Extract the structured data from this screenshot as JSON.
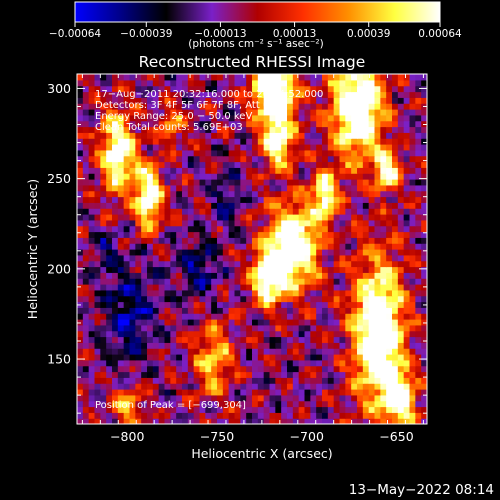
{
  "chart_data": {
    "type": "heatmap",
    "title": "Reconstructed RHESSI Image",
    "xlabel": "Heliocentric X (arcsec)",
    "ylabel": "Heliocentric Y (arcsec)",
    "xlim": [
      -828,
      -633
    ],
    "ylim": [
      114,
      308
    ],
    "x_ticks": [
      -800,
      -750,
      -700,
      -650
    ],
    "x_tick_labels": [
      "−800",
      "−750",
      "−700",
      "−650"
    ],
    "y_ticks": [
      150,
      200,
      250,
      300
    ],
    "y_tick_labels": [
      "150",
      "200",
      "250",
      "300"
    ],
    "colorbar": {
      "range": [
        -0.00064,
        0.00064
      ],
      "ticks": [
        -0.00064,
        -0.00039,
        -0.00013,
        0.00013,
        0.00039,
        0.00064
      ],
      "tick_labels": [
        "−0.00064",
        "−0.00039",
        "−0.00013",
        "0.00013",
        "0.00039",
        "0.00064"
      ],
      "unit_label": "(photons cm⁻² s⁻¹ asec⁻²)"
    },
    "annotations": [
      "17−Aug−2011 20:32:16.000 to 20:34:52.000",
      "Detectors: 3F 4F 5F 6F 7F 8F, Att 0",
      "Energy Range: 25.0 − 50.0 keV",
      "Clean     Total counts: 5.69E+03"
    ],
    "peak_text": "Position of Peak = [−699,304]",
    "grid": false,
    "colormap_stops": [
      "#0000ff",
      "#000088",
      "#000000",
      "#7a20c8",
      "#b00000",
      "#ff3000",
      "#ff9000",
      "#ffff40",
      "#ffffff"
    ],
    "hotspots": [
      {
        "x": -805,
        "y": 265,
        "sx": 7,
        "sy": 16,
        "amp": 1.2
      },
      {
        "x": -788,
        "y": 240,
        "sx": 5,
        "sy": 12,
        "amp": 1.3
      },
      {
        "x": -718,
        "y": 298,
        "sx": 8,
        "sy": 12,
        "amp": 1.6
      },
      {
        "x": -716,
        "y": 270,
        "sx": 6,
        "sy": 10,
        "amp": 1.1
      },
      {
        "x": -708,
        "y": 212,
        "sx": 10,
        "sy": 16,
        "amp": 1.5
      },
      {
        "x": -722,
        "y": 195,
        "sx": 6,
        "sy": 10,
        "amp": 1.2
      },
      {
        "x": -690,
        "y": 240,
        "sx": 5,
        "sy": 10,
        "amp": 1.1
      },
      {
        "x": -672,
        "y": 290,
        "sx": 10,
        "sy": 20,
        "amp": 1.5
      },
      {
        "x": -655,
        "y": 255,
        "sx": 5,
        "sy": 8,
        "amp": 1.0
      },
      {
        "x": -660,
        "y": 165,
        "sx": 10,
        "sy": 28,
        "amp": 1.5
      },
      {
        "x": -648,
        "y": 128,
        "sx": 6,
        "sy": 10,
        "amp": 1.2
      },
      {
        "x": -752,
        "y": 150,
        "sx": 7,
        "sy": 14,
        "amp": 0.8
      },
      {
        "x": -800,
        "y": 125,
        "sx": 6,
        "sy": 8,
        "amp": 0.7
      },
      {
        "x": -775,
        "y": 280,
        "sx": 5,
        "sy": 8,
        "amp": 0.6
      }
    ],
    "cold_spots": [
      {
        "x": -800,
        "y": 175,
        "sx": 10,
        "sy": 20,
        "amp": 0.9
      },
      {
        "x": -760,
        "y": 200,
        "sx": 8,
        "sy": 12,
        "amp": 0.8
      },
      {
        "x": -745,
        "y": 240,
        "sx": 6,
        "sy": 10,
        "amp": 0.7
      },
      {
        "x": -812,
        "y": 210,
        "sx": 5,
        "sy": 8,
        "amp": 0.6
      }
    ]
  },
  "footer_timestamp": "13−May−2022 08:14"
}
